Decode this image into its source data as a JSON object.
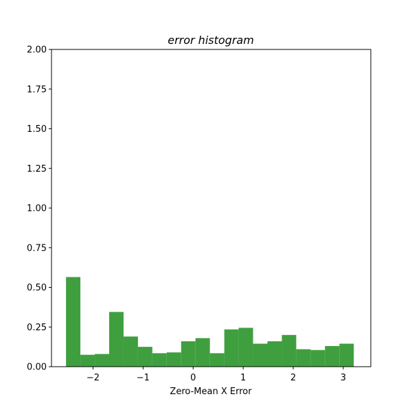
{
  "chart_data": {
    "type": "bar",
    "title": "error histogram",
    "xlabel": "Zero-Mean X Error",
    "ylabel": "",
    "bar_color": "#3f9f3f",
    "xlim": [
      -2.83,
      3.55
    ],
    "ylim": [
      0,
      2
    ],
    "x_ticks": [
      -2,
      -1,
      0,
      1,
      2,
      3
    ],
    "x_tick_labels": [
      "−2",
      "−1",
      "0",
      "1",
      "2",
      "3"
    ],
    "y_ticks": [
      0,
      0.25,
      0.5,
      0.75,
      1.0,
      1.25,
      1.5,
      1.75,
      2.0
    ],
    "y_tick_labels": [
      "0.00",
      "0.25",
      "0.50",
      "0.75",
      "1.00",
      "1.25",
      "1.50",
      "1.75",
      "2.00"
    ],
    "bin_start": -2.54,
    "bin_width": 0.2875,
    "values": [
      0.565,
      0.075,
      0.08,
      0.345,
      0.19,
      0.125,
      0.085,
      0.09,
      0.16,
      0.18,
      0.085,
      0.235,
      0.245,
      0.145,
      0.16,
      0.2,
      0.11,
      0.105,
      0.13,
      0.145
    ]
  }
}
